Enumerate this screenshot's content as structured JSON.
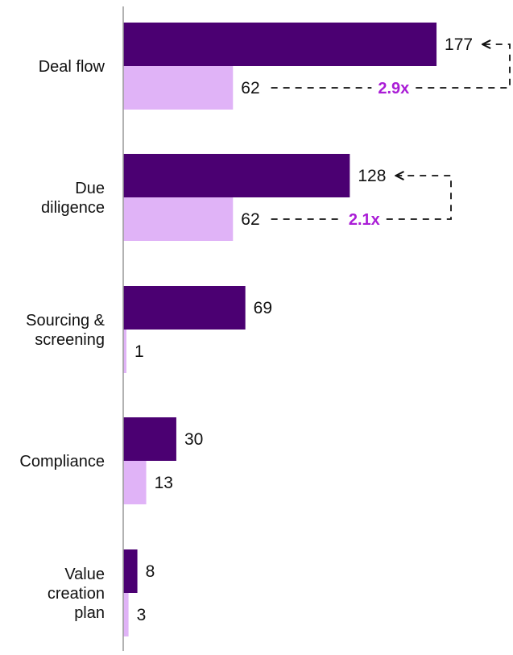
{
  "colors": {
    "primary_bar": "#4b0072",
    "secondary_bar": "#e0b3f7",
    "multiplier_text": "#aa1dd6",
    "axis": "#999999",
    "connector": "#111111"
  },
  "chart_data": {
    "type": "bar",
    "orientation": "horizontal",
    "title": "",
    "xlabel": "",
    "ylabel": "",
    "legend": "none",
    "grid": false,
    "xlim": [
      0,
      177
    ],
    "categories": [
      [
        "Deal flow"
      ],
      [
        "Due",
        "diligence"
      ],
      [
        "Sourcing &",
        "screening"
      ],
      [
        "Compliance"
      ],
      [
        "Value",
        "creation",
        "plan"
      ]
    ],
    "series": [
      {
        "values": [
          177,
          128,
          69,
          30,
          8
        ]
      },
      {
        "values": [
          62,
          62,
          1,
          13,
          3
        ]
      }
    ],
    "annotations": [
      {
        "category_index": 0,
        "label": "2.9x"
      },
      {
        "category_index": 1,
        "label": "2.1x"
      }
    ]
  }
}
